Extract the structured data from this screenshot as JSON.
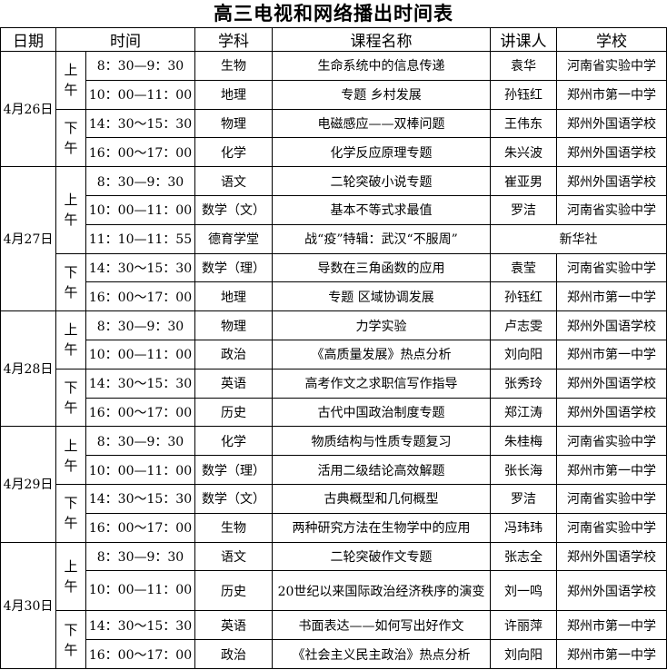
{
  "title": "高三电视和网络播出时间表",
  "header": [
    "日期",
    "时间",
    "学科",
    "课程名称",
    "讲课人",
    "学校"
  ],
  "days": [
    {
      "date": "4月26日",
      "sessions": [
        {
          "period": "上午",
          "rows": [
            {
              "time": "8：30—9：30",
              "subject": "生物",
              "course": "生命系统中的信息传递",
              "teacher": "袁华",
              "school": "河南省实验中学"
            },
            {
              "time": "10：00—11：00",
              "subject": "地理",
              "course": "专题 乡村发展",
              "teacher": "孙钰红",
              "school": "郑州市第一中学"
            }
          ]
        },
        {
          "period": "下午",
          "rows": [
            {
              "time": "14：30～15：30",
              "subject": "物理",
              "course": "电磁感应——双棒问题",
              "teacher": "王伟东",
              "school": "郑州外国语学校"
            },
            {
              "time": "16：00～17：00",
              "subject": "化学",
              "course": "化学反应原理专题",
              "teacher": "朱兴波",
              "school": "郑州外国语学校"
            }
          ]
        }
      ]
    },
    {
      "date": "4月27日",
      "sessions": [
        {
          "period": "上午",
          "rows": [
            {
              "time": "8：30—9：30",
              "subject": "语文",
              "course": "二轮突破小说专题",
              "teacher": "崔亚男",
              "school": "郑州外国语学校"
            },
            {
              "time": "10：00—11：00",
              "subject": "数学（文）",
              "course": "基本不等式求最值",
              "teacher": "罗洁",
              "school": "河南省实验中学"
            },
            {
              "time": "11：10—11：55",
              "subject": "德育学堂",
              "course": "战“疫”特辑：武汉“不服周”",
              "source": "新华社"
            }
          ]
        },
        {
          "period": "下午",
          "rows": [
            {
              "time": "14：30～15：30",
              "subject": "数学（理）",
              "course": "导数在三角函数的应用",
              "teacher": "袁莹",
              "school": "河南省实验中学"
            },
            {
              "time": "16：00～17：00",
              "subject": "地理",
              "course": "专题 区域协调发展",
              "teacher": "孙钰红",
              "school": "郑州市第一中学"
            }
          ]
        }
      ]
    },
    {
      "date": "4月28日",
      "sessions": [
        {
          "period": "上午",
          "rows": [
            {
              "time": "8：30—9：30",
              "subject": "物理",
              "course": "力学实验",
              "teacher": "卢志雯",
              "school": "郑州外国语学校"
            },
            {
              "time": "10：00—11：00",
              "subject": "政治",
              "course": "《高质量发展》热点分析",
              "teacher": "刘向阳",
              "school": "郑州市第一中学"
            }
          ]
        },
        {
          "period": "下午",
          "rows": [
            {
              "time": "14：30～15：30",
              "subject": "英语",
              "course": "高考作文之求职信写作指导",
              "teacher": "张秀玲",
              "school": "郑州外国语学校"
            },
            {
              "time": "16：00～17：00",
              "subject": "历史",
              "course": "古代中国政治制度专题",
              "teacher": "郑江涛",
              "school": "郑州外国语学校"
            }
          ]
        }
      ]
    },
    {
      "date": "4月29日",
      "sessions": [
        {
          "period": "上午",
          "rows": [
            {
              "time": "8：30—9：30",
              "subject": "化学",
              "course": "物质结构与性质专题复习",
              "teacher": "朱桂梅",
              "school": "河南省实验中学"
            },
            {
              "time": "10：00—11：00",
              "subject": "数学（理）",
              "course": "活用二级结论高效解题",
              "teacher": "张长海",
              "school": "郑州市第一中学"
            }
          ]
        },
        {
          "period": "下午",
          "rows": [
            {
              "time": "14：30～15：30",
              "subject": "数学（文）",
              "course": "古典概型和几何概型",
              "teacher": "罗洁",
              "school": "河南省实验中学"
            },
            {
              "time": "16：00～17：00",
              "subject": "生物",
              "course": "两种研究方法在生物学中的应用",
              "teacher": "冯玮玮",
              "school": "河南省实验中学"
            }
          ]
        }
      ]
    },
    {
      "date": "4月30日",
      "sessions": [
        {
          "period": "上午",
          "rows": [
            {
              "time": "8：30—9：30",
              "subject": "语文",
              "course": "二轮突破作文专题",
              "teacher": "张志全",
              "school": "郑州外国语学校"
            },
            {
              "time": "10：00—11：00",
              "subject": "历史",
              "course": "20世纪以来国际政治经济秩序的演变",
              "teacher": "刘一鸣",
              "school": "郑州外国语学校"
            }
          ]
        },
        {
          "period": "下午",
          "rows": [
            {
              "time": "14：30～15：30",
              "subject": "英语",
              "course": "书面表达——如何写出好作文",
              "teacher": "许丽萍",
              "school": "郑州市第一中学"
            },
            {
              "time": "16：00～17：00",
              "subject": "政治",
              "course": "《社会主义民主政治》热点分析",
              "teacher": "刘向阳",
              "school": "郑州市第一中学"
            }
          ]
        }
      ]
    }
  ]
}
